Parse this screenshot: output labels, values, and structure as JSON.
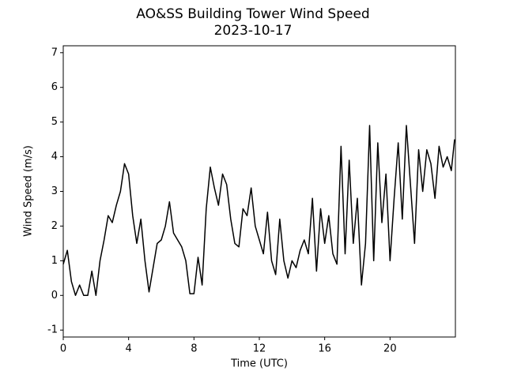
{
  "chart_data": {
    "type": "line",
    "title": "AO&SS Building Tower Wind Speed",
    "subtitle": "2023-10-17",
    "x_label": "Time (UTC)",
    "y_label": "Wind Speed (m/s)",
    "x": [
      0,
      0.25,
      0.5,
      0.75,
      1,
      1.25,
      1.5,
      1.75,
      2,
      2.25,
      2.5,
      2.75,
      3,
      3.25,
      3.5,
      3.75,
      4,
      4.25,
      4.5,
      4.75,
      5,
      5.25,
      5.5,
      5.75,
      6,
      6.25,
      6.5,
      6.75,
      7,
      7.25,
      7.5,
      7.75,
      8,
      8.25,
      8.5,
      8.75,
      9,
      9.25,
      9.5,
      9.75,
      10,
      10.25,
      10.5,
      10.75,
      11,
      11.25,
      11.5,
      11.75,
      12,
      12.25,
      12.5,
      12.75,
      13,
      13.25,
      13.5,
      13.75,
      14,
      14.25,
      14.5,
      14.75,
      15,
      15.25,
      15.5,
      15.75,
      16,
      16.25,
      16.5,
      16.75,
      17,
      17.25,
      17.5,
      17.75,
      18,
      18.25,
      18.5,
      18.75,
      19,
      19.25,
      19.5,
      19.75,
      20,
      20.25,
      20.5,
      20.75,
      21,
      21.25,
      21.5,
      21.75,
      22,
      22.25,
      22.5,
      22.75,
      23,
      23.25,
      23.5,
      23.75,
      23.95
    ],
    "series": [
      {
        "name": "Wind Speed",
        "color": "#000000",
        "values": [
          0.9,
          1.3,
          0.4,
          0.0,
          0.3,
          0.0,
          0.0,
          0.7,
          0.0,
          1.0,
          1.6,
          2.3,
          2.1,
          2.6,
          3.0,
          3.8,
          3.5,
          2.3,
          1.5,
          2.2,
          1.0,
          0.1,
          0.8,
          1.5,
          1.6,
          2.0,
          2.7,
          1.8,
          1.6,
          1.4,
          1.0,
          0.05,
          0.05,
          1.1,
          0.3,
          2.5,
          3.7,
          3.1,
          2.6,
          3.5,
          3.2,
          2.2,
          1.5,
          1.4,
          2.5,
          2.3,
          3.1,
          2.0,
          1.6,
          1.2,
          2.4,
          1.0,
          0.6,
          2.2,
          1.0,
          0.5,
          1.0,
          0.8,
          1.3,
          1.6,
          1.2,
          2.8,
          0.7,
          2.5,
          1.5,
          2.3,
          1.2,
          0.9,
          4.3,
          1.2,
          3.9,
          1.5,
          2.8,
          0.3,
          1.5,
          4.9,
          1.0,
          4.4,
          2.1,
          3.5,
          1.0,
          2.8,
          4.4,
          2.2,
          4.9,
          3.2,
          1.5,
          4.2,
          3.0,
          4.2,
          3.8,
          2.8,
          4.3,
          3.7,
          4.0,
          3.6,
          4.5
        ]
      }
    ],
    "xlim": [
      0,
      24
    ],
    "ylim": [
      -1.2,
      7.2
    ],
    "xticks": [
      0,
      4,
      8,
      12,
      16,
      20
    ],
    "yticks": [
      -1,
      0,
      1,
      2,
      3,
      4,
      5,
      6,
      7
    ],
    "grid": false
  }
}
